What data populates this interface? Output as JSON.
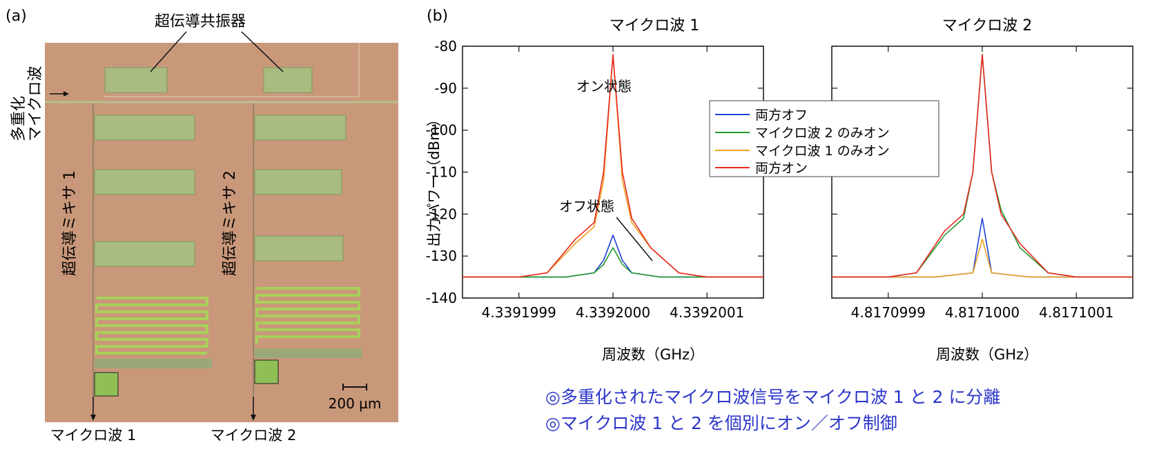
{
  "panel_a": {
    "label": "(a)",
    "resonator_label": "超伝導共振器",
    "input_label_line1": "多重化",
    "input_label_line2": "マイクロ波",
    "mixer1_label": "超伝導ミキサ 1",
    "mixer2_label": "超伝導ミキサ 2",
    "output1_label": "マイクロ波 1",
    "output2_label": "マイクロ波 2",
    "scale_bar_label": "200 µm"
  },
  "panel_b": {
    "label": "(b)"
  },
  "colors": {
    "both_off": "#1f3fd8",
    "mw2_only_on": "#1f9a2e",
    "mw1_only_on": "#f0a020",
    "both_on": "#e8271f",
    "caption": "#2b35c9",
    "chip": "#c9987a",
    "metal": "#a8bb80"
  },
  "chart_data": [
    {
      "type": "line",
      "title": "マイクロ波 1",
      "xlabel": "周波数（GHz）",
      "ylabel": "出力パワー（dBm）",
      "xlim": [
        4.33919984,
        4.33920016
      ],
      "ylim": [
        -140,
        -80
      ],
      "x_ticks": [
        4.3391999,
        4.3392,
        4.3392001
      ],
      "x_tick_labels": [
        "4.3391999",
        "4.3392000",
        "4.3392001"
      ],
      "y_ticks": [
        -140,
        -130,
        -120,
        -110,
        -100,
        -90,
        -80
      ],
      "y_tick_labels": [
        "-140",
        "-130",
        "-120",
        "-110",
        "-100",
        "-90",
        "-80"
      ],
      "annotations": [
        "オン状態",
        "オフ状態"
      ],
      "series": [
        {
          "name": "両方オフ",
          "color_key": "both_off",
          "x": [
            4.33919984,
            4.3391999,
            4.33919995,
            4.33919998,
            4.33919999,
            4.3392,
            4.33920001,
            4.33920002,
            4.33920005,
            4.3392001,
            4.33920016
          ],
          "y": [
            -135,
            -135,
            -135,
            -134,
            -131,
            -125,
            -131,
            -134,
            -135,
            -135,
            -135
          ]
        },
        {
          "name": "マイクロ波 2 のみオン",
          "color_key": "mw2_only_on",
          "x": [
            4.33919984,
            4.3391999,
            4.33919995,
            4.33919998,
            4.33919999,
            4.3392,
            4.33920001,
            4.33920002,
            4.33920005,
            4.3392001,
            4.33920016
          ],
          "y": [
            -135,
            -135,
            -135,
            -134,
            -132,
            -128,
            -132,
            -134,
            -135,
            -135,
            -135
          ]
        },
        {
          "name": "マイクロ波 1 のみオン",
          "color_key": "mw1_only_on",
          "x": [
            4.33919984,
            4.3391999,
            4.33919993,
            4.33919996,
            4.33919998,
            4.33919999,
            4.3392,
            4.33920001,
            4.33920002,
            4.33920004,
            4.33920007,
            4.3392001,
            4.33920016
          ],
          "y": [
            -135,
            -135,
            -134,
            -127,
            -123,
            -112,
            -82,
            -112,
            -122,
            -128,
            -134,
            -135,
            -135
          ]
        },
        {
          "name": "両方オン",
          "color_key": "both_on",
          "x": [
            4.33919984,
            4.3391999,
            4.33919993,
            4.33919996,
            4.33919998,
            4.33919999,
            4.3392,
            4.33920001,
            4.33920002,
            4.33920004,
            4.33920007,
            4.3392001,
            4.33920016
          ],
          "y": [
            -135,
            -135,
            -134,
            -126,
            -122,
            -110,
            -82,
            -110,
            -121,
            -128,
            -134,
            -135,
            -135
          ]
        }
      ]
    },
    {
      "type": "line",
      "title": "マイクロ波 2",
      "xlabel": "周波数（GHz）",
      "ylabel": "",
      "xlim": [
        4.81709984,
        4.81710016
      ],
      "ylim": [
        -140,
        -80
      ],
      "x_ticks": [
        4.8170999,
        4.8171,
        4.8171001
      ],
      "x_tick_labels": [
        "4.8170999",
        "4.8171000",
        "4.8171001"
      ],
      "y_ticks": [
        -140,
        -130,
        -120,
        -110,
        -100,
        -90,
        -80
      ],
      "y_tick_labels": [],
      "series": [
        {
          "name": "両方オフ",
          "color_key": "both_off",
          "x": [
            4.81709984,
            4.8170999,
            4.81709995,
            4.81709999,
            4.8171,
            4.81710001,
            4.81710005,
            4.8171001,
            4.81710016
          ],
          "y": [
            -135,
            -135,
            -135,
            -134,
            -121,
            -134,
            -135,
            -135,
            -135
          ]
        },
        {
          "name": "マイクロ波 2 のみオン",
          "color_key": "mw2_only_on",
          "x": [
            4.81709984,
            4.8170999,
            4.81709993,
            4.81709996,
            4.81709998,
            4.81709999,
            4.8171,
            4.81710001,
            4.81710002,
            4.81710004,
            4.81710007,
            4.8171001,
            4.81710016
          ],
          "y": [
            -135,
            -135,
            -134,
            -125,
            -121,
            -110,
            -82,
            -110,
            -119,
            -128,
            -134,
            -135,
            -135
          ]
        },
        {
          "name": "マイクロ波 1 のみオン",
          "color_key": "mw1_only_on",
          "x": [
            4.81709984,
            4.8170999,
            4.81709995,
            4.81709999,
            4.8171,
            4.81710001,
            4.81710005,
            4.8171001,
            4.81710016
          ],
          "y": [
            -135,
            -135,
            -135,
            -134,
            -126,
            -134,
            -135,
            -135,
            -135
          ]
        },
        {
          "name": "両方オン",
          "color_key": "both_on",
          "x": [
            4.81709984,
            4.8170999,
            4.81709993,
            4.81709996,
            4.81709998,
            4.81709999,
            4.8171,
            4.81710001,
            4.81710002,
            4.81710004,
            4.81710007,
            4.8171001,
            4.81710016
          ],
          "y": [
            -135,
            -135,
            -134,
            -124,
            -120,
            -110,
            -82,
            -110,
            -120,
            -127,
            -134,
            -135,
            -135
          ]
        }
      ]
    }
  ],
  "legend": {
    "items": [
      "両方オフ",
      "マイクロ波 2 のみオン",
      "マイクロ波 1 のみオン",
      "両方オン"
    ]
  },
  "caption": {
    "line1": "◎多重化されたマイクロ波信号をマイクロ波 1 と 2 に分離",
    "line2": "◎マイクロ波 1 と 2 を個別にオン／オフ制御"
  }
}
